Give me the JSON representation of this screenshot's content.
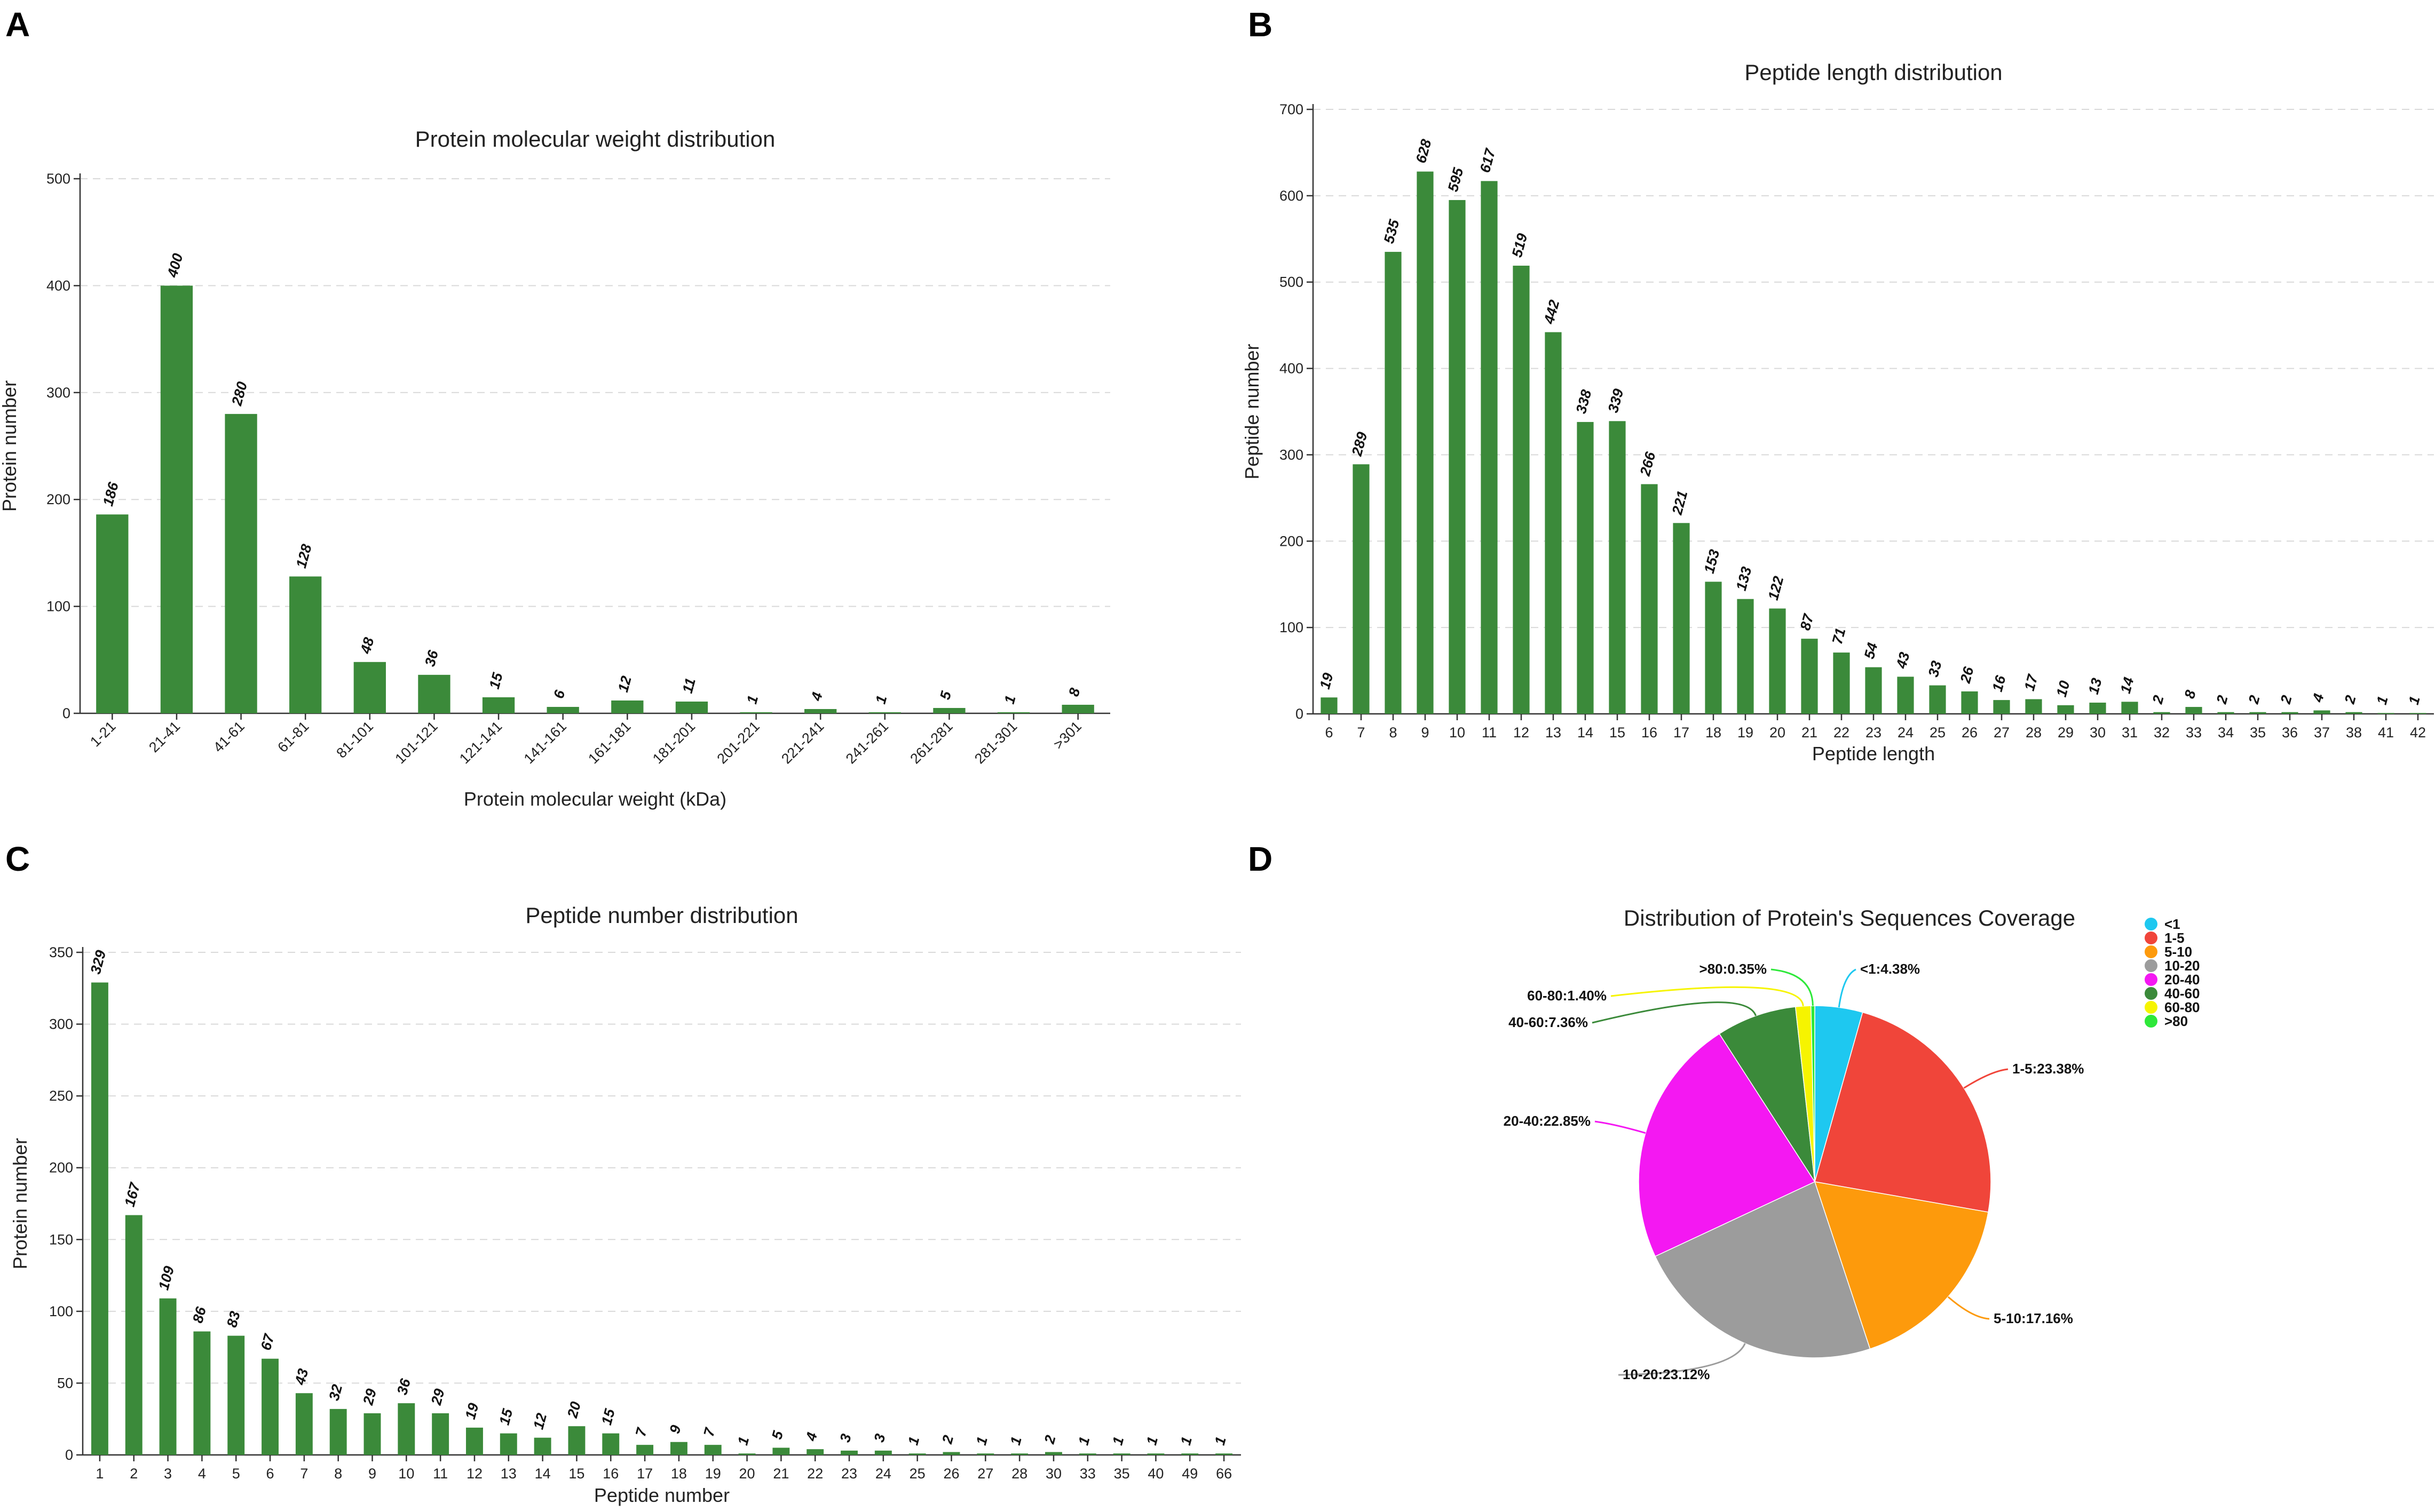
{
  "panels": {
    "a": "A",
    "b": "B",
    "c": "C",
    "d": "D"
  },
  "chart_data": [
    {
      "id": "A",
      "type": "bar",
      "title": "Protein molecular weight distribution",
      "xlabel": "Protein molecular weight (kDa)",
      "ylabel": "Protein number",
      "ylim": [
        0,
        500
      ],
      "yticks": [
        0,
        100,
        200,
        300,
        400,
        500
      ],
      "grid": true,
      "categories": [
        "1-21",
        "21-41",
        "41-61",
        "61-81",
        "81-101",
        "101-121",
        "121-141",
        "141-161",
        "161-181",
        "181-201",
        "201-221",
        "221-241",
        "241-261",
        "261-281",
        "281-301",
        ">301"
      ],
      "values": [
        186,
        400,
        280,
        128,
        48,
        36,
        15,
        6,
        12,
        11,
        1,
        4,
        1,
        5,
        1,
        8
      ],
      "color": "#3b8a3a"
    },
    {
      "id": "B",
      "type": "bar",
      "title": "Peptide length distribution",
      "xlabel": "Peptide length",
      "ylabel": "Peptide number",
      "ylim": [
        0,
        700
      ],
      "yticks": [
        0,
        100,
        200,
        300,
        400,
        500,
        600,
        700
      ],
      "grid": true,
      "categories": [
        "6",
        "7",
        "8",
        "9",
        "10",
        "11",
        "12",
        "13",
        "14",
        "15",
        "16",
        "17",
        "18",
        "19",
        "20",
        "21",
        "22",
        "23",
        "24",
        "25",
        "26",
        "27",
        "28",
        "29",
        "30",
        "31",
        "32",
        "33",
        "34",
        "35",
        "36",
        "37",
        "38",
        "41",
        "42"
      ],
      "values": [
        19,
        289,
        535,
        628,
        595,
        617,
        519,
        442,
        338,
        339,
        266,
        221,
        153,
        133,
        122,
        87,
        71,
        54,
        43,
        33,
        26,
        16,
        17,
        10,
        13,
        14,
        2,
        8,
        2,
        2,
        2,
        4,
        2,
        1,
        1
      ],
      "color": "#3b8a3a"
    },
    {
      "id": "C",
      "type": "bar",
      "title": "Peptide number distribution",
      "xlabel": "Peptide number",
      "ylabel": "Protein number",
      "ylim": [
        0,
        350
      ],
      "yticks": [
        0,
        50,
        100,
        150,
        200,
        250,
        300,
        350
      ],
      "grid": true,
      "categories": [
        "1",
        "2",
        "3",
        "4",
        "5",
        "6",
        "7",
        "8",
        "9",
        "10",
        "11",
        "12",
        "13",
        "14",
        "15",
        "16",
        "17",
        "18",
        "19",
        "20",
        "21",
        "22",
        "23",
        "24",
        "25",
        "26",
        "27",
        "28",
        "30",
        "33",
        "35",
        "40",
        "49",
        "66"
      ],
      "values": [
        329,
        167,
        109,
        86,
        83,
        67,
        43,
        32,
        29,
        36,
        29,
        19,
        15,
        12,
        20,
        15,
        7,
        9,
        7,
        1,
        5,
        4,
        3,
        3,
        1,
        2,
        1,
        1,
        2,
        1,
        1,
        1,
        1,
        1
      ],
      "color": "#3b8a3a"
    },
    {
      "id": "D",
      "type": "pie",
      "title": "Distribution of Protein's Sequences Coverage",
      "legend_position": "top-right",
      "slices": [
        {
          "name": "<1",
          "value": 4.38,
          "label": "<1:4.38%",
          "color": "#1ec8f0"
        },
        {
          "name": "1-5",
          "value": 23.38,
          "label": "1-5:23.38%",
          "color": "#f0453a"
        },
        {
          "name": "5-10",
          "value": 17.16,
          "label": "5-10:17.16%",
          "color": "#fd9a0c"
        },
        {
          "name": "10-20",
          "value": 23.12,
          "label": "10-20:23.12%",
          "color": "#9c9c9c"
        },
        {
          "name": "20-40",
          "value": 22.85,
          "label": "20-40:22.85%",
          "color": "#f418f2"
        },
        {
          "name": "40-60",
          "value": 7.36,
          "label": "40-60:7.36%",
          "color": "#3b8a3a"
        },
        {
          "name": "60-80",
          "value": 1.4,
          "label": "60-80:1.40%",
          "color": "#f6f400"
        },
        {
          "name": ">80",
          "value": 0.35,
          "label": ">80:0.35%",
          "color": "#2ee83a"
        }
      ]
    }
  ]
}
